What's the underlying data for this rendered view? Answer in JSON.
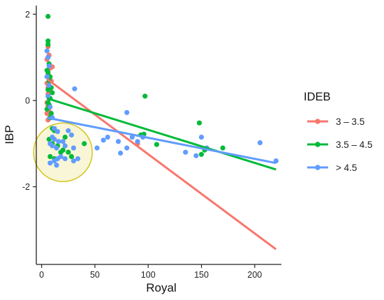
{
  "chart_data": {
    "type": "scatter",
    "xlabel": "Royal",
    "ylabel": "IBP",
    "xlim": [
      -5,
      225
    ],
    "ylim": [
      -3.8,
      2.2
    ],
    "xticks": [
      0,
      50,
      100,
      150,
      200
    ],
    "yticks": [
      -2,
      0,
      2
    ],
    "xtick_labels": [
      "0",
      "50",
      "100",
      "150",
      "200"
    ],
    "ytick_labels": [
      "-2",
      "0",
      "2"
    ],
    "grid": false,
    "legend": {
      "title": "IDEB",
      "placement": "right"
    },
    "series": [
      {
        "name": "3 – 3.5",
        "color": "#F8766D",
        "points": [
          [
            6,
            1.25
          ],
          [
            7,
            1.05
          ],
          [
            5,
            0.95
          ],
          [
            8,
            0.75
          ],
          [
            10,
            0.78
          ],
          [
            6,
            0.6
          ],
          [
            7,
            0.55
          ],
          [
            9,
            0.45
          ],
          [
            5,
            0.4
          ],
          [
            6,
            0.3
          ],
          [
            8,
            0.25
          ],
          [
            6,
            0.15
          ],
          [
            7,
            0.05
          ],
          [
            5,
            -0.05
          ],
          [
            6,
            -0.12
          ],
          [
            7,
            -0.25
          ],
          [
            5,
            -0.3
          ],
          [
            8,
            -0.35
          ],
          [
            6,
            -0.45
          ],
          [
            90,
            -1.0
          ]
        ],
        "fit": [
          [
            5,
            0.5
          ],
          [
            220,
            -3.45
          ]
        ]
      },
      {
        "name": "3.5 – 4.5",
        "color": "#00BA38",
        "points": [
          [
            6,
            1.95
          ],
          [
            6,
            1.38
          ],
          [
            6,
            1.3
          ],
          [
            7,
            0.85
          ],
          [
            5,
            0.7
          ],
          [
            6,
            0.65
          ],
          [
            8,
            0.55
          ],
          [
            7,
            0.45
          ],
          [
            9,
            0.3
          ],
          [
            6,
            0.25
          ],
          [
            10,
            0.18
          ],
          [
            8,
            0.05
          ],
          [
            6,
            -0.05
          ],
          [
            7,
            -0.1
          ],
          [
            5,
            -0.2
          ],
          [
            9,
            -0.3
          ],
          [
            8,
            -0.4
          ],
          [
            10,
            -0.65
          ],
          [
            12,
            -0.7
          ],
          [
            7,
            -0.9
          ],
          [
            10,
            -1.0
          ],
          [
            15,
            -1.05
          ],
          [
            20,
            -1.15
          ],
          [
            25,
            -1.2
          ],
          [
            18,
            -1.2
          ],
          [
            8,
            -1.3
          ],
          [
            12,
            -1.35
          ],
          [
            28,
            -1.3
          ],
          [
            22,
            -0.85
          ],
          [
            40,
            -1.0
          ],
          [
            97,
            0.1
          ],
          [
            148,
            -0.52
          ],
          [
            93,
            -0.8
          ],
          [
            96,
            -0.78
          ],
          [
            108,
            -1.02
          ],
          [
            150,
            -1.25
          ],
          [
            153,
            -1.15
          ],
          [
            170,
            -1.1
          ]
        ],
        "fit": [
          [
            5,
            0.05
          ],
          [
            220,
            -1.6
          ]
        ]
      },
      {
        "name": "> 4.5",
        "color": "#619CFF",
        "points": [
          [
            5,
            1.15
          ],
          [
            6,
            1.0
          ],
          [
            7,
            0.8
          ],
          [
            5,
            0.55
          ],
          [
            7,
            0.35
          ],
          [
            6,
            0.1
          ],
          [
            8,
            -0.15
          ],
          [
            10,
            -0.4
          ],
          [
            31,
            0.27
          ],
          [
            12,
            -0.65
          ],
          [
            15,
            -0.72
          ],
          [
            10,
            -0.85
          ],
          [
            12,
            -0.9
          ],
          [
            25,
            -0.7
          ],
          [
            28,
            -0.8
          ],
          [
            8,
            -1.0
          ],
          [
            10,
            -1.05
          ],
          [
            14,
            -1.1
          ],
          [
            16,
            -0.95
          ],
          [
            20,
            -0.95
          ],
          [
            22,
            -1.05
          ],
          [
            30,
            -1.1
          ],
          [
            18,
            -1.3
          ],
          [
            22,
            -1.35
          ],
          [
            15,
            -1.35
          ],
          [
            12,
            -1.4
          ],
          [
            8,
            -1.45
          ],
          [
            14,
            -1.5
          ],
          [
            30,
            -1.4
          ],
          [
            34,
            -1.35
          ],
          [
            52,
            -1.1
          ],
          [
            58,
            -0.92
          ],
          [
            62,
            -0.85
          ],
          [
            72,
            -0.95
          ],
          [
            80,
            -0.28
          ],
          [
            74,
            -1.22
          ],
          [
            80,
            -1.1
          ],
          [
            85,
            -0.85
          ],
          [
            90,
            -0.95
          ],
          [
            95,
            -0.85
          ],
          [
            135,
            -1.2
          ],
          [
            145,
            -1.28
          ],
          [
            150,
            -0.85
          ],
          [
            155,
            -1.1
          ],
          [
            205,
            -0.98
          ],
          [
            220,
            -1.4
          ]
        ],
        "fit": [
          [
            5,
            -0.4
          ],
          [
            220,
            -1.45
          ]
        ]
      }
    ],
    "annotations": [
      {
        "type": "circle",
        "center": [
          20,
          -1.2
        ],
        "note_color": "#D4C41F",
        "fill": "#F7F5CF"
      }
    ]
  }
}
